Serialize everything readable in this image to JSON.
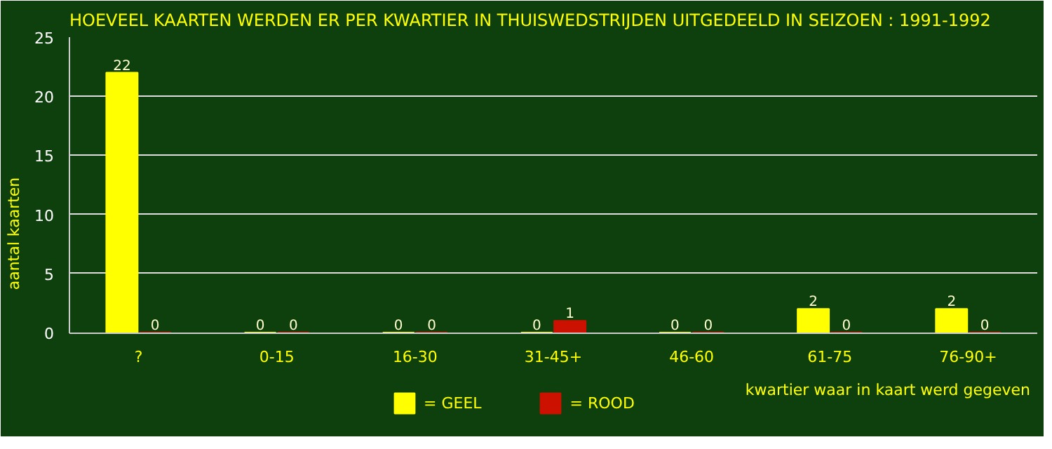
{
  "chart_data": {
    "type": "bar",
    "title": "HOEVEEL KAARTEN WERDEN ER PER KWARTIER IN THUISWEDSTRIJDEN UITGEDEELD IN SEIZOEN : 1991-1992",
    "xlabel": "kwartier waar in kaart werd gegeven",
    "ylabel": "aantal kaarten",
    "categories": [
      "?",
      "0-15",
      "16-30",
      "31-45+",
      "46-60",
      "61-75",
      "76-90+"
    ],
    "series": [
      {
        "name": "= GEEL",
        "color": "#ffff00",
        "values": [
          22,
          0,
          0,
          0,
          0,
          2,
          2
        ]
      },
      {
        "name": "= ROOD",
        "color": "#cc1100",
        "values": [
          0,
          0,
          0,
          1,
          0,
          0,
          0
        ]
      }
    ],
    "ylim": [
      0,
      25
    ],
    "yticks": [
      0,
      5,
      10,
      15,
      20,
      25
    ],
    "grid": "y",
    "legend": "bottom",
    "data_labels": true
  }
}
